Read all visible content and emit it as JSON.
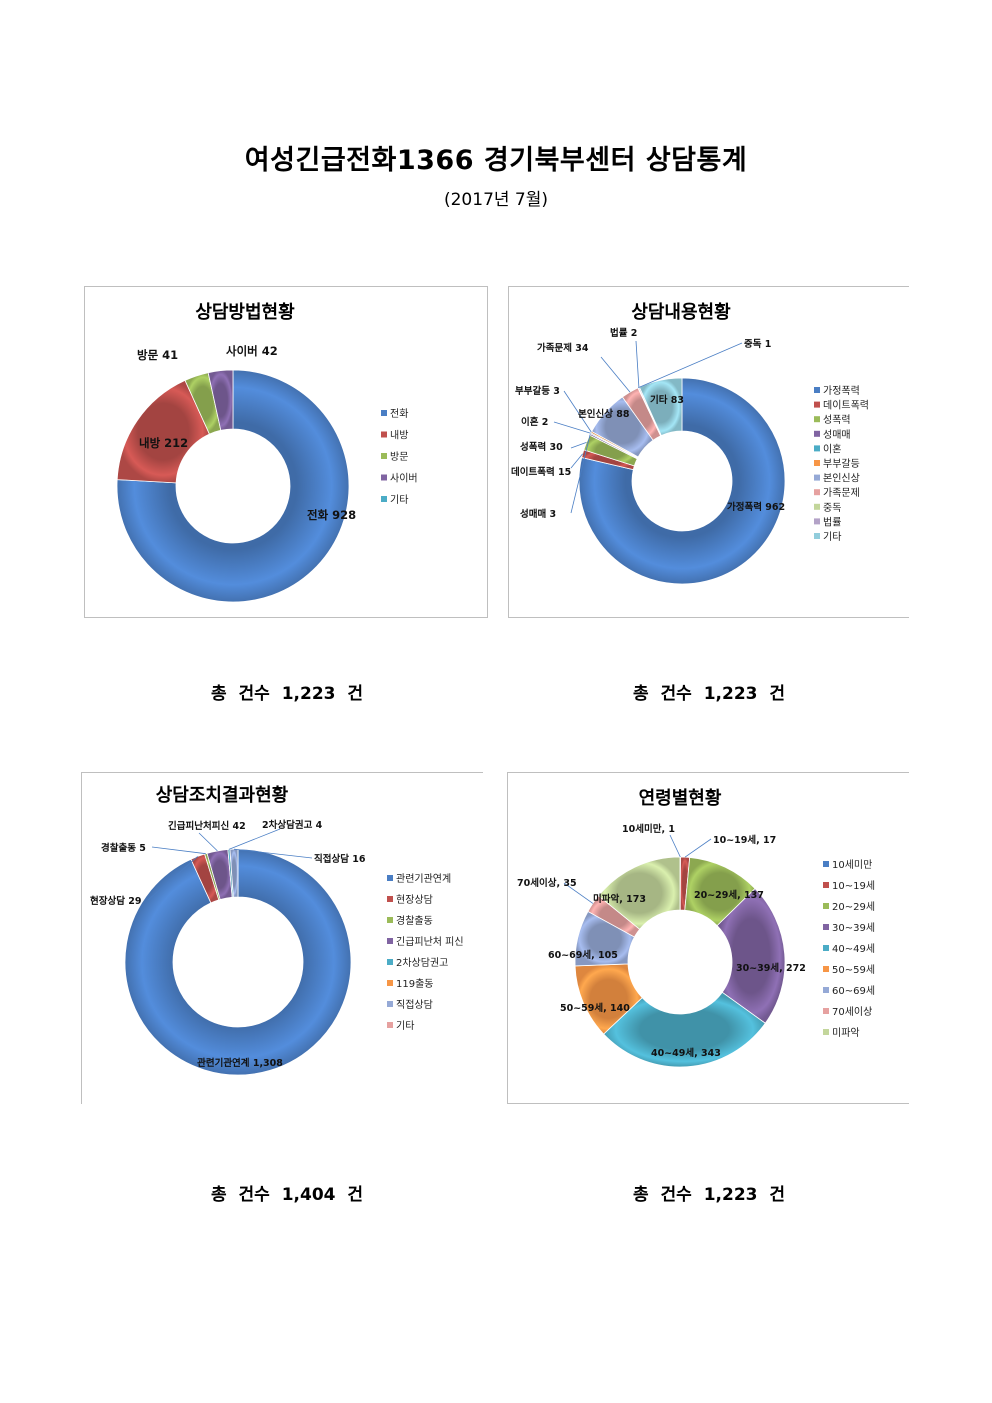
{
  "header": {
    "title": "여성긴급전화1366 경기북부센터 상담통계",
    "subtitle": "(2017년 7월)"
  },
  "chart_data": [
    {
      "type": "pie",
      "donut": true,
      "title": "상담방법현황",
      "categories": [
        "전화",
        "내방",
        "방문",
        "사이버",
        "기타"
      ],
      "values": [
        928,
        212,
        41,
        42,
        0
      ],
      "colors": [
        "#4a7ec4",
        "#c0504d",
        "#9bbb59",
        "#8064a2",
        "#4bacc6"
      ],
      "labels": [
        "전화 928",
        "내방 212",
        "방문 41",
        "사이버 42",
        ""
      ],
      "legend": "right",
      "total_text": "총 건수  1,223 건"
    },
    {
      "type": "pie",
      "donut": true,
      "title": "상담내용현황",
      "categories": [
        "가정폭력",
        "데이트폭력",
        "성폭력",
        "성매매",
        "이혼",
        "부부갈등",
        "본인신상",
        "가족문제",
        "중독",
        "법률",
        "기타"
      ],
      "values": [
        962,
        15,
        30,
        3,
        2,
        3,
        88,
        34,
        1,
        2,
        83
      ],
      "colors": [
        "#4a7ec4",
        "#c0504d",
        "#9bbb59",
        "#8064a2",
        "#4bacc6",
        "#f79646",
        "#95a9d6",
        "#e6a1a0",
        "#c3d69b",
        "#b3a2c7",
        "#92cddc"
      ],
      "labels": [
        "가정폭력 962",
        "데이트폭력 15",
        "성폭력 30",
        "성매매 3",
        "이혼 2",
        "부부갈등 3",
        "본인신상 88",
        "가족문제 34",
        "중독 1",
        "법률 2",
        "기타 83"
      ],
      "legend": "right",
      "total_text": "총 건수 1,223 건"
    },
    {
      "type": "pie",
      "donut": true,
      "title": "상담조치결과현황",
      "categories": [
        "관련기관연계",
        "현장상담",
        "경찰출동",
        "긴급피난처 피신",
        "2차상담권고",
        "119출동",
        "직접상담",
        "기타"
      ],
      "values": [
        1308,
        29,
        5,
        42,
        4,
        0,
        16,
        0
      ],
      "colors": [
        "#4a7ec4",
        "#c0504d",
        "#9bbb59",
        "#8064a2",
        "#4bacc6",
        "#f79646",
        "#95a9d6",
        "#e6a1a0"
      ],
      "labels": [
        "관련기관연계 1,308",
        "현장상담 29",
        "경찰출동 5",
        "긴급피난처피신 42",
        "2차상담권고 4",
        "",
        "직접상담 16",
        ""
      ],
      "legend": "right",
      "total_text": "총 건수 1,404 건"
    },
    {
      "type": "pie",
      "donut": true,
      "title": "연령별현황",
      "categories": [
        "10세미만",
        "10~19세",
        "20~29세",
        "30~39세",
        "40~49세",
        "50~59세",
        "60~69세",
        "70세이상",
        "미파악"
      ],
      "values": [
        1,
        17,
        137,
        272,
        343,
        140,
        105,
        35,
        173
      ],
      "colors": [
        "#4a7ec4",
        "#c0504d",
        "#9bbb59",
        "#8064a2",
        "#4bacc6",
        "#f79646",
        "#95a9d6",
        "#e6a1a0",
        "#c3d69b"
      ],
      "labels": [
        "10세미만, 1",
        "10~19세, 17",
        "20~29세, 137",
        "30~39세, 272",
        "40~49세, 343",
        "50~59세, 140",
        "60~69세, 105",
        "70세이상, 35",
        "미파악, 173"
      ],
      "legend": "right",
      "total_text": "총 건수 1,223 건"
    }
  ]
}
